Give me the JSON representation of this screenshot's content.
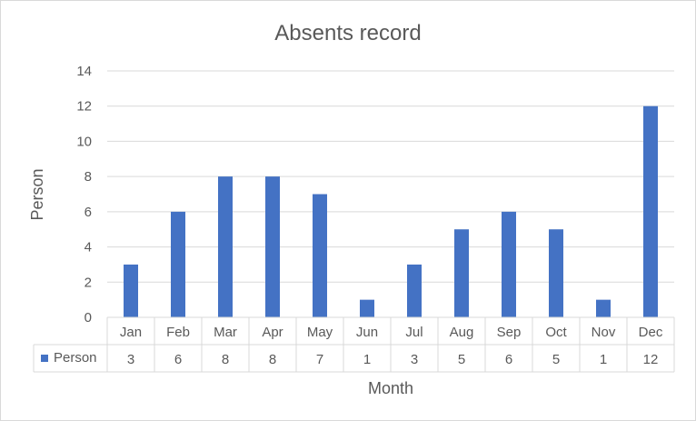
{
  "chart_data": {
    "type": "bar",
    "title": "Absents record",
    "xlabel": "Month",
    "ylabel": "Person",
    "categories": [
      "Jan",
      "Feb",
      "Mar",
      "Apr",
      "May",
      "Jun",
      "Jul",
      "Aug",
      "Sep",
      "Oct",
      "Nov",
      "Dec"
    ],
    "series": [
      {
        "name": "Person",
        "values": [
          3,
          6,
          8,
          8,
          7,
          1,
          3,
          5,
          6,
          5,
          1,
          12
        ],
        "color": "#4472c4"
      }
    ],
    "ylim": [
      0,
      14
    ],
    "yticks": [
      "0",
      "2",
      "4",
      "6",
      "8",
      "10",
      "12",
      "14"
    ],
    "grid": true,
    "legend": "data-table"
  }
}
